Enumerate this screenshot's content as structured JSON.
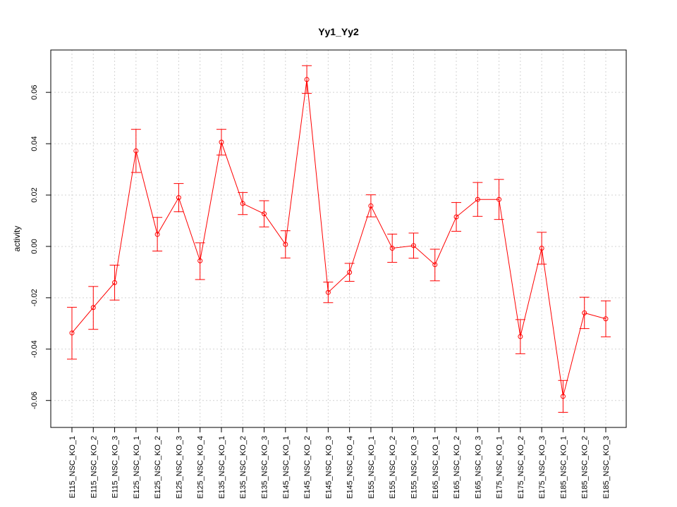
{
  "chart_data": {
    "type": "line",
    "title": "Yy1_Yy2",
    "xlabel": "",
    "ylabel": "activity",
    "ylim": [
      -0.0705,
      0.0765
    ],
    "yticks": [
      -0.06,
      -0.04,
      -0.02,
      0.0,
      0.02,
      0.04,
      0.06
    ],
    "ytick_labels": [
      "-0.06",
      "-0.04",
      "-0.02",
      "0.00",
      "0.02",
      "0.04",
      "0.06"
    ],
    "grid": true,
    "color": "#ff0000",
    "categories": [
      "E115_NSC_KO_1",
      "E115_NSC_KO_2",
      "E115_NSC_KO_3",
      "E125_NSC_KO_1",
      "E125_NSC_KO_2",
      "E125_NSC_KO_3",
      "E125_NSC_KO_4",
      "E135_NSC_KO_1",
      "E135_NSC_KO_2",
      "E135_NSC_KO_3",
      "E145_NSC_KO_1",
      "E145_NSC_KO_2",
      "E145_NSC_KO_3",
      "E145_NSC_KO_4",
      "E155_NSC_KO_1",
      "E155_NSC_KO_2",
      "E155_NSC_KO_3",
      "E165_NSC_KO_1",
      "E165_NSC_KO_2",
      "E165_NSC_KO_3",
      "E175_NSC_KO_1",
      "E175_NSC_KO_2",
      "E175_NSC_KO_3",
      "E185_NSC_KO_1",
      "E185_NSC_KO_2",
      "E185_NSC_KO_3"
    ],
    "values": [
      -0.0337,
      -0.0238,
      -0.0141,
      0.0372,
      0.0047,
      0.019,
      -0.0056,
      0.0406,
      0.0167,
      0.0127,
      0.0008,
      0.065,
      -0.0179,
      -0.0101,
      0.0158,
      -0.0007,
      0.0003,
      -0.0071,
      0.0115,
      0.0183,
      0.0183,
      -0.0351,
      -0.0007,
      -0.0584,
      -0.0259,
      -0.0282
    ],
    "err_upper": [
      -0.0237,
      -0.0156,
      -0.0073,
      0.0456,
      0.0113,
      0.0245,
      0.0014,
      0.0456,
      0.021,
      0.0178,
      0.0061,
      0.0704,
      -0.0139,
      -0.0066,
      0.0201,
      0.0048,
      0.0052,
      -0.0011,
      0.0171,
      0.0249,
      0.0261,
      -0.0285,
      0.0055,
      -0.0522,
      -0.0198,
      -0.0212
    ],
    "err_lower": [
      -0.0439,
      -0.0323,
      -0.0209,
      0.0288,
      -0.0018,
      0.0135,
      -0.0129,
      0.0356,
      0.0124,
      0.0076,
      -0.0045,
      0.0596,
      -0.0219,
      -0.0136,
      0.0115,
      -0.0062,
      -0.0046,
      -0.0134,
      0.0059,
      0.0117,
      0.0105,
      -0.0418,
      -0.0069,
      -0.0646,
      -0.032,
      -0.0352
    ]
  }
}
